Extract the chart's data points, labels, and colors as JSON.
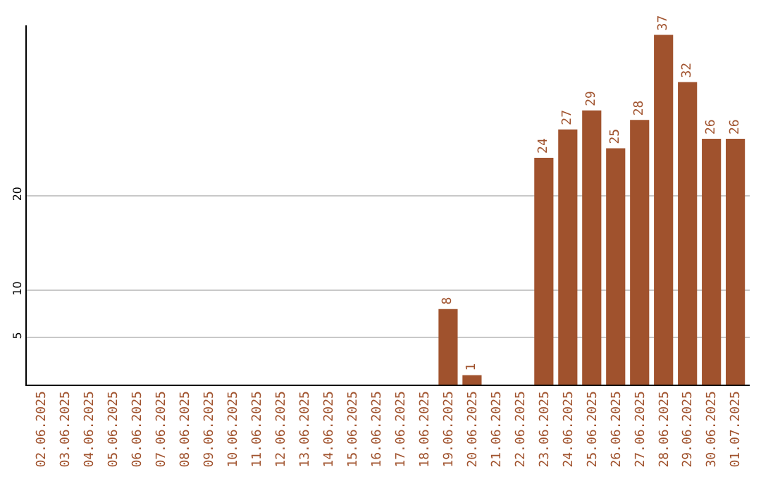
{
  "chart_data": {
    "type": "bar",
    "categories": [
      "02.06.2025",
      "03.06.2025",
      "04.06.2025",
      "05.06.2025",
      "06.06.2025",
      "07.06.2025",
      "08.06.2025",
      "09.06.2025",
      "10.06.2025",
      "11.06.2025",
      "12.06.2025",
      "13.06.2025",
      "14.06.2025",
      "15.06.2025",
      "16.06.2025",
      "17.06.2025",
      "18.06.2025",
      "19.06.2025",
      "20.06.2025",
      "21.06.2025",
      "22.06.2025",
      "23.06.2025",
      "24.06.2025",
      "25.06.2025",
      "26.06.2025",
      "27.06.2025",
      "28.06.2025",
      "29.06.2025",
      "30.06.2025",
      "01.07.2025"
    ],
    "values": [
      0,
      0,
      0,
      0,
      0,
      0,
      0,
      0,
      0,
      0,
      0,
      0,
      0,
      0,
      0,
      0,
      0,
      8,
      1,
      0,
      0,
      24,
      27,
      29,
      25,
      28,
      37,
      32,
      26,
      26
    ],
    "value_labels": [
      null,
      null,
      null,
      null,
      null,
      null,
      null,
      null,
      null,
      null,
      null,
      null,
      null,
      null,
      null,
      null,
      null,
      "8",
      "1",
      null,
      null,
      "24",
      "27",
      "29",
      "25",
      "28",
      "37",
      "32",
      "26",
      "26"
    ],
    "color": "#a0522d",
    "ylim": [
      0,
      38
    ],
    "yticks": [
      5,
      10,
      20
    ],
    "grid": "y"
  }
}
